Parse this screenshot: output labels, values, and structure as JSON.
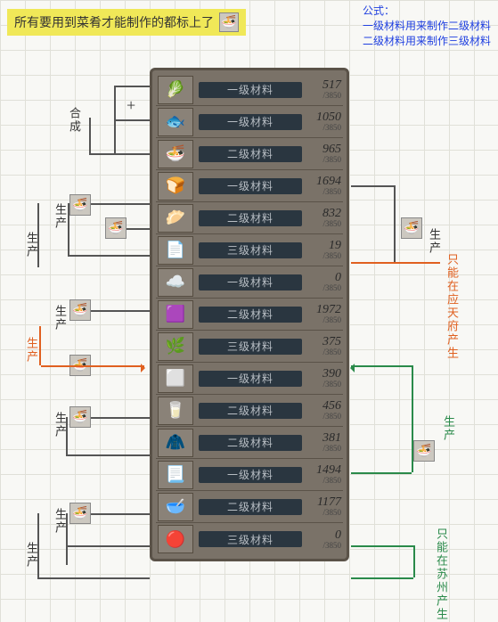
{
  "banner": {
    "text": "所有要用到菜肴才能制作的都标上了",
    "icon": "bowl-icon"
  },
  "formula": {
    "title": "公式：",
    "line1": "一级材料用来制作二级材料",
    "line2": "二级材料用来制作三级材料"
  },
  "panel_bg": "#7a7268",
  "bar_bg": "#2a3640",
  "bar_text_color": "#b8bec4",
  "max_value": "/3850",
  "rows": [
    {
      "icon": "🥬",
      "tier": "一级材料",
      "value": "517"
    },
    {
      "icon": "🐟",
      "tier": "一级材料",
      "value": "1050"
    },
    {
      "icon": "🍜",
      "tier": "二级材料",
      "value": "965"
    },
    {
      "icon": "🍞",
      "tier": "一级材料",
      "value": "1694"
    },
    {
      "icon": "🥟",
      "tier": "二级材料",
      "value": "832"
    },
    {
      "icon": "📄",
      "tier": "三级材料",
      "value": "19"
    },
    {
      "icon": "☁️",
      "tier": "一级材料",
      "value": "0"
    },
    {
      "icon": "🟪",
      "tier": "二级材料",
      "value": "1972"
    },
    {
      "icon": "🌿",
      "tier": "三级材料",
      "value": "375"
    },
    {
      "icon": "⬜",
      "tier": "一级材料",
      "value": "390"
    },
    {
      "icon": "🥛",
      "tier": "二级材料",
      "value": "456"
    },
    {
      "icon": "🧥",
      "tier": "二级材料",
      "value": "381"
    },
    {
      "icon": "📃",
      "tier": "一级材料",
      "value": "1494"
    },
    {
      "icon": "🥣",
      "tier": "二级材料",
      "value": "1177"
    },
    {
      "icon": "🔴",
      "tier": "三级材料",
      "value": "0"
    }
  ],
  "side_labels": {
    "hecheng": "合成",
    "shengchan": "生产"
  },
  "notes": {
    "orange": "只能在应天府产生",
    "green": "只能在苏州产生"
  },
  "colors": {
    "connector": "#555555",
    "orange": "#e06020",
    "green": "#2a8a4a",
    "banner_bg": "#f0e858",
    "formula_text": "#2040e0"
  }
}
